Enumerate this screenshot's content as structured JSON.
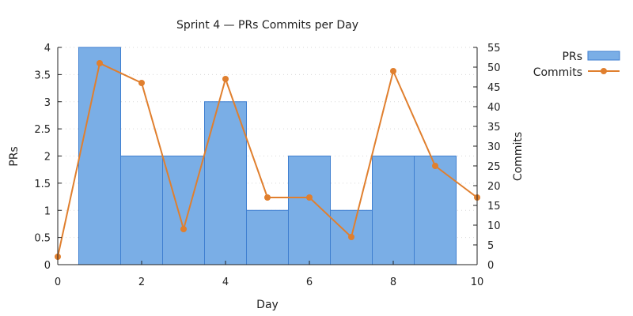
{
  "chart_data": {
    "type": "bar",
    "title": "Sprint 4 — PRs  Commits per Day",
    "xlabel": "Day",
    "ylabel": "PRs",
    "y2label": "Commits",
    "xlim": [
      0,
      10
    ],
    "ylim": [
      0,
      4
    ],
    "y2lim": [
      0,
      55
    ],
    "xticks": [
      "0",
      "2",
      "4",
      "6",
      "8",
      "10"
    ],
    "yticks": [
      "0",
      "0.5",
      "1",
      "1.5",
      "2",
      "2.5",
      "3",
      "3.5",
      "4"
    ],
    "y2ticks": [
      "0",
      "5",
      "10",
      "15",
      "20",
      "25",
      "30",
      "35",
      "40",
      "45",
      "50",
      "55"
    ],
    "grid": "horizontal dotted",
    "legend": "top-right, outside plot",
    "series": [
      {
        "name": "PRs",
        "kind": "bar",
        "axis": "left",
        "color": "#7aaee6",
        "edge_color": "#3f7fd0",
        "x": [
          1,
          2,
          3,
          4,
          5,
          6,
          7,
          8,
          9
        ],
        "values": [
          4,
          2,
          2,
          3,
          1,
          2,
          1,
          2,
          2
        ]
      },
      {
        "name": "Commits",
        "kind": "line",
        "axis": "right",
        "color": "#e07f2e",
        "x": [
          0,
          1,
          2,
          3,
          4,
          5,
          6,
          7,
          8,
          9,
          10
        ],
        "values": [
          2,
          51,
          46,
          9,
          47,
          17,
          17,
          7,
          49,
          25,
          17
        ]
      }
    ]
  }
}
